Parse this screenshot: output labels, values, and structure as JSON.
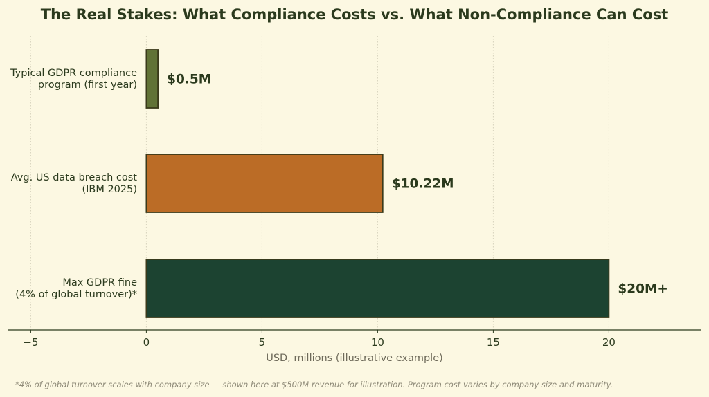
{
  "chart_data": {
    "type": "bar",
    "orientation": "horizontal",
    "title": "The Real Stakes: What Compliance Costs vs. What Non-Compliance Can Cost",
    "xlabel": "USD, millions (illustrative example)",
    "ylabel": "",
    "xlim": [
      -6,
      24
    ],
    "xticks": [
      -5,
      0,
      5,
      10,
      15,
      20
    ],
    "xtick_labels": [
      "−5",
      "0",
      "5",
      "10",
      "15",
      "20"
    ],
    "grid": "vertical-dotted",
    "categories": [
      [
        "Typical GDPR compliance",
        "program (first year)"
      ],
      [
        "Avg. US data breach cost",
        "(IBM 2025)"
      ],
      [
        "Max GDPR fine",
        "(4% of global turnover)*"
      ]
    ],
    "values": [
      0.5,
      10.22,
      20
    ],
    "data_labels": [
      "$0.5M",
      "$10.22M",
      "$20M+"
    ],
    "colors": [
      "#617236",
      "#bb6c26",
      "#1c4331"
    ],
    "edge_color": "#3a3a1a",
    "footnote": "*4% of global turnover scales with company size — shown here at $500M revenue for illustration. Program cost varies by company size and maturity."
  },
  "colors": {
    "background": "#fcf8e2",
    "text": "#2b3a1d",
    "grid": "#d6d2bd",
    "axis": "#2b3a1d",
    "muted": "#6e6a5a"
  }
}
